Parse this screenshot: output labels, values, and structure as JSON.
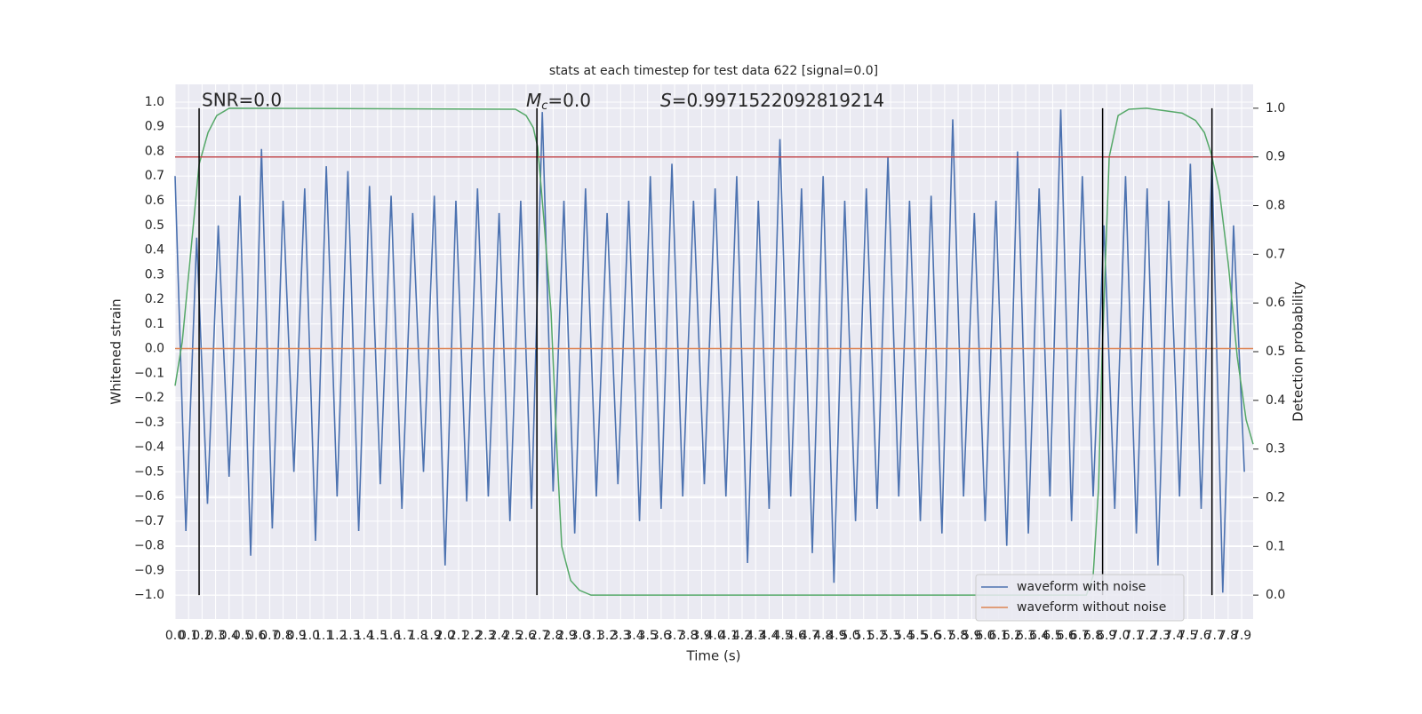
{
  "chart_data": {
    "type": "line",
    "title": "stats at each timestep for test data 622 [signal=0.0]",
    "xlabel": "Time (s)",
    "ylabel": "Whitened strain",
    "y2label": "Detection probability",
    "annotations": [
      {
        "text": "SNR=0.0"
      },
      {
        "symbol": "M",
        "subscript": "c",
        "text": "=0.0"
      },
      {
        "symbol": "S",
        "text": "=0.9971522092819214"
      }
    ],
    "xlim": [
      0,
      7.985
    ],
    "ylim": [
      -1.097,
      1.072
    ],
    "y2lim": [
      -0.049,
      1.049
    ],
    "xticks": [
      {
        "value": 0,
        "label": "0.0"
      },
      0.1,
      0.2,
      0.3,
      0.4,
      0.5,
      0.6,
      0.7,
      0.8,
      0.9,
      {
        "value": 1,
        "label": "1.0"
      },
      1.1,
      1.2,
      1.3,
      1.4,
      1.5,
      1.6,
      1.7,
      1.8,
      1.9,
      {
        "value": 2,
        "label": "2.0"
      },
      2.1,
      2.2,
      2.3,
      2.4,
      2.5,
      2.6,
      2.7,
      2.8,
      2.9,
      {
        "value": 3,
        "label": "3.0"
      },
      3.1,
      3.2,
      3.3,
      3.4,
      3.5,
      3.6,
      3.7,
      3.8,
      3.9,
      {
        "value": 4,
        "label": "4.0"
      },
      4.1,
      4.2,
      4.3,
      4.4,
      4.5,
      4.6,
      4.7,
      4.8,
      4.9,
      {
        "value": 5,
        "label": "5.0"
      },
      5.1,
      5.2,
      5.3,
      5.4,
      5.5,
      5.6,
      5.7,
      5.8,
      5.9,
      {
        "value": 6,
        "label": "6.0"
      },
      6.1,
      6.2,
      6.3,
      6.4,
      6.5,
      6.6,
      6.7,
      6.8,
      6.9,
      {
        "value": 7,
        "label": "7.0"
      },
      7.1,
      7.2,
      7.3,
      7.4,
      7.5,
      7.6,
      7.7,
      7.8,
      7.9
    ],
    "yticks": [
      {
        "value": 1,
        "label": "1.0"
      },
      0.9,
      0.8,
      0.7,
      0.6,
      0.5,
      0.4,
      0.3,
      0.2,
      0.1,
      {
        "value": 0,
        "label": "0.0"
      },
      {
        "value": -0.1,
        "label": "−0.1"
      },
      {
        "value": -0.2,
        "label": "−0.2"
      },
      {
        "value": -0.3,
        "label": "−0.3"
      },
      {
        "value": -0.4,
        "label": "−0.4"
      },
      {
        "value": -0.5,
        "label": "−0.5"
      },
      {
        "value": -0.6,
        "label": "−0.6"
      },
      {
        "value": -0.7,
        "label": "−0.7"
      },
      {
        "value": -0.8,
        "label": "−0.8"
      },
      {
        "value": -0.9,
        "label": "−0.9"
      },
      {
        "value": -1,
        "label": "−1.0"
      }
    ],
    "y2ticks": [
      {
        "value": 0,
        "label": "0.0"
      },
      0.1,
      0.2,
      0.3,
      0.4,
      0.5,
      0.6,
      0.7,
      0.8,
      0.9,
      {
        "value": 1,
        "label": "1.0"
      }
    ],
    "grid": true,
    "legend": "lower right",
    "series": [
      {
        "name": "waveform with noise",
        "color": "#4c72b0",
        "x": [
          0,
          0.08,
          0.16,
          0.24,
          0.32,
          0.4,
          0.48,
          0.56,
          0.64,
          0.72,
          0.8,
          0.88,
          0.96,
          1.04,
          1.12,
          1.2,
          1.28,
          1.36,
          1.44,
          1.52,
          1.6,
          1.68,
          1.76,
          1.84,
          1.92,
          2,
          2.08,
          2.16,
          2.24,
          2.32,
          2.4,
          2.48,
          2.56,
          2.64,
          2.72,
          2.8,
          2.88,
          2.96,
          3.04,
          3.12,
          3.2,
          3.28,
          3.36,
          3.44,
          3.52,
          3.6,
          3.68,
          3.76,
          3.84,
          3.92,
          4,
          4.08,
          4.16,
          4.24,
          4.32,
          4.4,
          4.48,
          4.56,
          4.64,
          4.72,
          4.8,
          4.88,
          4.96,
          5.04,
          5.12,
          5.2,
          5.28,
          5.36,
          5.44,
          5.52,
          5.6,
          5.68,
          5.76,
          5.84,
          5.92,
          6,
          6.08,
          6.16,
          6.24,
          6.32,
          6.4,
          6.48,
          6.56,
          6.64,
          6.72,
          6.8,
          6.88,
          6.96,
          7.04,
          7.12,
          7.2,
          7.28,
          7.36,
          7.44,
          7.52,
          7.6,
          7.68,
          7.76,
          7.84,
          7.92
        ],
        "values": [
          0.7,
          -0.74,
          0.45,
          -0.63,
          0.5,
          -0.52,
          0.62,
          -0.84,
          0.81,
          -0.73,
          0.6,
          -0.5,
          0.65,
          -0.78,
          0.74,
          -0.6,
          0.72,
          -0.74,
          0.66,
          -0.55,
          0.62,
          -0.65,
          0.55,
          -0.5,
          0.62,
          -0.88,
          0.6,
          -0.62,
          0.65,
          -0.6,
          0.55,
          -0.7,
          0.6,
          -0.65,
          0.96,
          -0.58,
          0.6,
          -0.75,
          0.65,
          -0.6,
          0.55,
          -0.55,
          0.6,
          -0.7,
          0.7,
          -0.65,
          0.75,
          -0.6,
          0.6,
          -0.55,
          0.65,
          -0.6,
          0.7,
          -0.87,
          0.6,
          -0.65,
          0.85,
          -0.6,
          0.65,
          -0.83,
          0.7,
          -0.95,
          0.6,
          -0.7,
          0.65,
          -0.65,
          0.78,
          -0.6,
          0.6,
          -0.7,
          0.62,
          -0.75,
          0.93,
          -0.6,
          0.55,
          -0.7,
          0.6,
          -0.8,
          0.8,
          -0.75,
          0.65,
          -0.6,
          0.97,
          -0.7,
          0.7,
          -0.6,
          0.5,
          -0.65,
          0.7,
          -0.75,
          0.65,
          -0.88,
          0.6,
          -0.6,
          0.75,
          -0.65,
          0.76,
          -0.99,
          0.5,
          -0.5
        ]
      },
      {
        "name": "waveform without noise",
        "color": "#dd8452",
        "x": [
          0,
          7.985
        ],
        "values": [
          0,
          0
        ]
      },
      {
        "color": "#55a868",
        "axis": "y2",
        "x": [
          0,
          0.053,
          0.178,
          0.244,
          0.309,
          0.401,
          2.521,
          2.6,
          2.653,
          2.686,
          2.732,
          2.785,
          2.831,
          2.864,
          2.93,
          2.995,
          3.081,
          6.75,
          6.8,
          6.84,
          6.866,
          6.919,
          6.985,
          7.064,
          7.196,
          7.459,
          7.558,
          7.624,
          7.676,
          7.735,
          7.801,
          7.867,
          7.933,
          7.985
        ],
        "values": [
          0.43,
          0.52,
          0.885,
          0.95,
          0.985,
          1.0,
          0.998,
          0.985,
          0.96,
          0.92,
          0.77,
          0.58,
          0.28,
          0.1,
          0.03,
          0.01,
          0.0,
          0.0,
          0.04,
          0.22,
          0.49,
          0.9,
          0.985,
          0.998,
          1.0,
          0.99,
          0.975,
          0.95,
          0.905,
          0.83,
          0.68,
          0.49,
          0.36,
          0.31
        ]
      }
    ],
    "vlines": {
      "x": [
        0.178,
        2.68,
        6.87,
        7.68
      ],
      "ymin": 0,
      "ymax": 1,
      "axis": "y2",
      "color": "#000000"
    },
    "hline": {
      "y": 0.9,
      "axis": "y2",
      "color": "#c44e52"
    }
  }
}
